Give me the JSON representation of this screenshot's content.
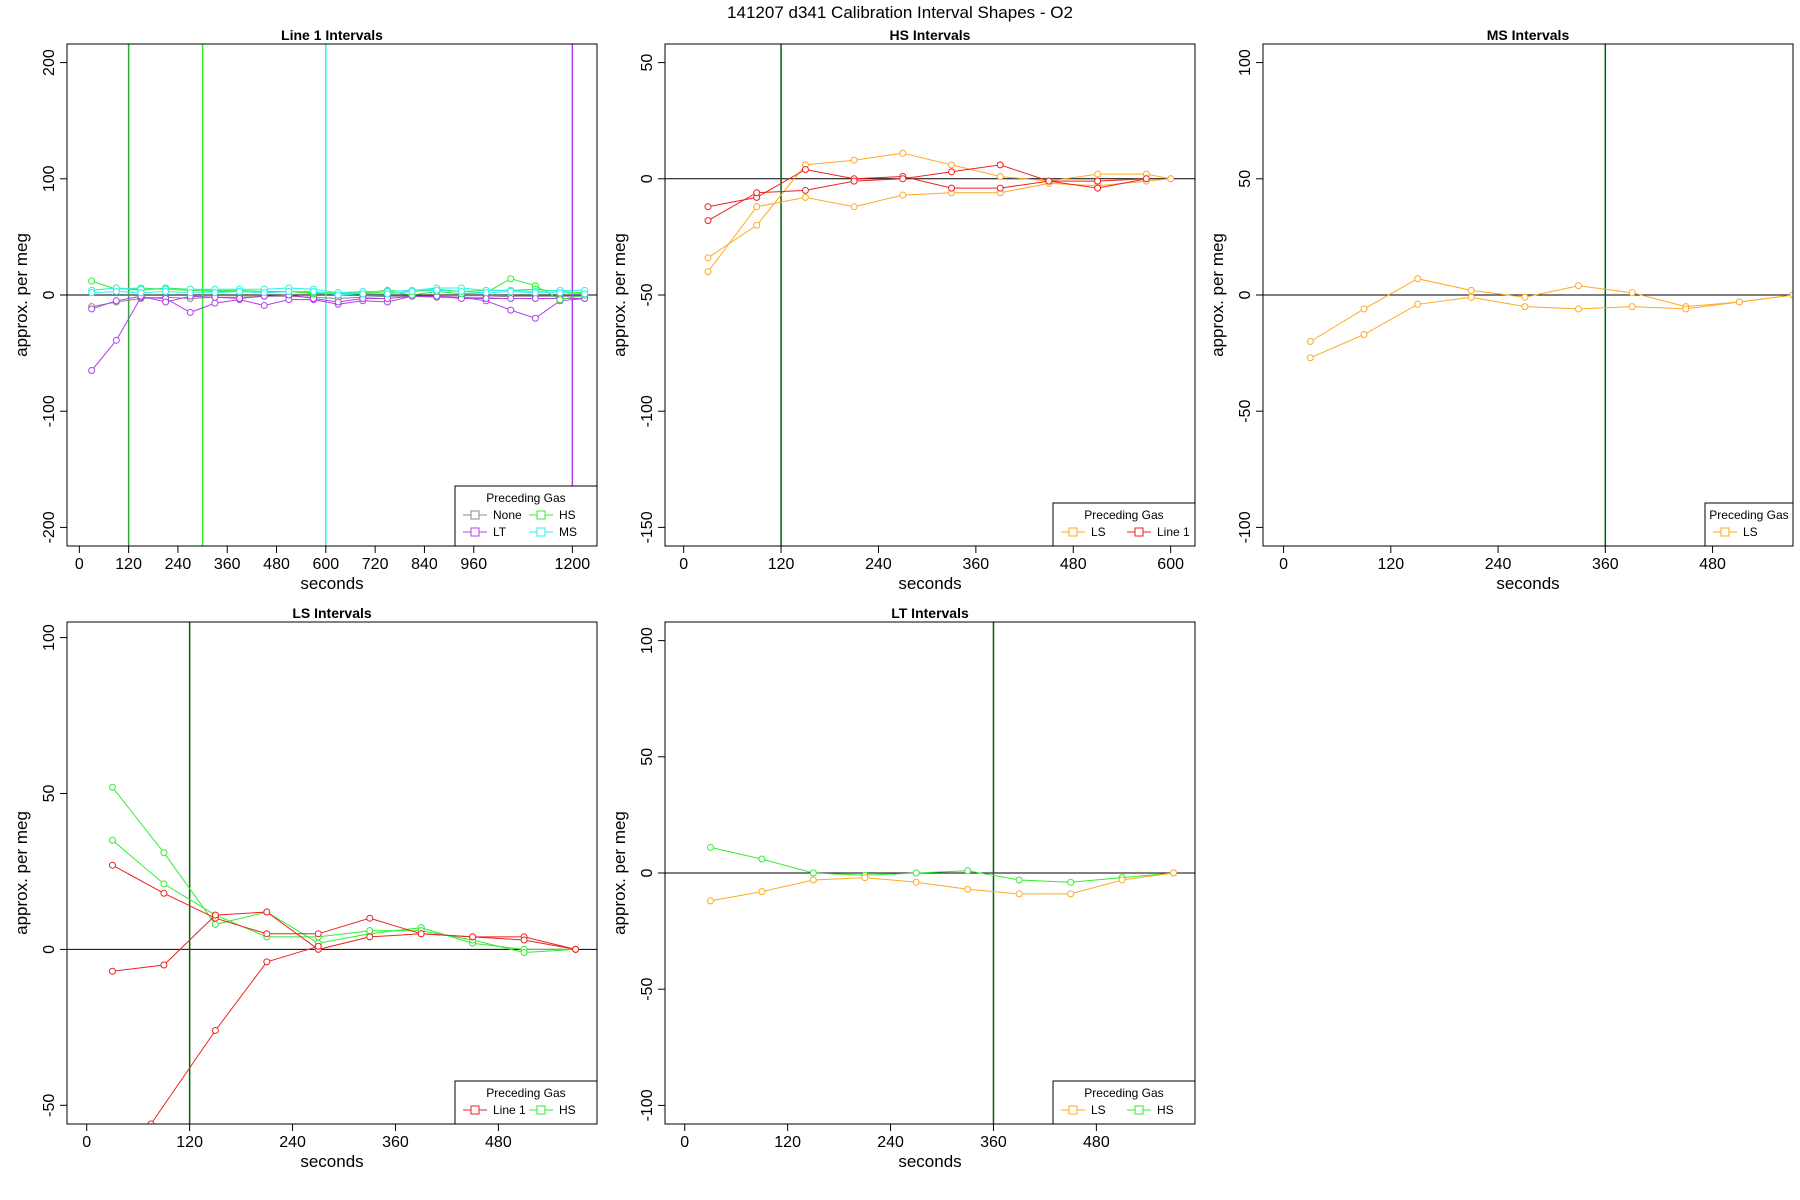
{
  "title": "141207   d341   Calibration Interval Shapes - O2",
  "legend_title": "Preceding Gas",
  "colors": {
    "None": "#888888",
    "LT": "#b040e8",
    "HS": "#30ee30",
    "MS": "#30eeee",
    "LS": "#ffaa22",
    "Line 1": "#ee2222",
    "vline": "#006400",
    "axis": "#000000"
  },
  "chart_data": [
    {
      "type": "line",
      "title": "Line 1 Intervals",
      "xlabel": "seconds",
      "ylabel": "approx. per meg",
      "xlim": [
        -30,
        1260
      ],
      "ylim": [
        -216,
        216
      ],
      "xticks": [
        0,
        120,
        240,
        360,
        480,
        600,
        720,
        840,
        960,
        1200
      ],
      "yticks": [
        -200,
        -100,
        0,
        100,
        200
      ],
      "vlines": [
        {
          "x": 120,
          "color": "#30aa30"
        },
        {
          "x": 300,
          "color": "#30ee30"
        },
        {
          "x": 600,
          "color": "#30eeee"
        },
        {
          "x": 1200,
          "color": "#b040e8"
        }
      ],
      "legend": {
        "position": "bottom-right",
        "columns": 2,
        "entries": [
          "None",
          "HS",
          "LT",
          "MS"
        ]
      },
      "series": [
        {
          "name": "None",
          "x": [
            30,
            90,
            150,
            210,
            270,
            330,
            390,
            450,
            510,
            570,
            630,
            690,
            750,
            810,
            870,
            930,
            990,
            1050,
            1110,
            1170,
            1230
          ],
          "y": [
            -10,
            -6,
            -3,
            -2,
            -3,
            -2,
            -2,
            -1,
            -1,
            -2,
            -3,
            -2,
            -1,
            -1,
            -2,
            -2,
            -2,
            -1,
            -1,
            -1,
            -1
          ]
        },
        {
          "name": "LT",
          "x": [
            30,
            90,
            150,
            210,
            270,
            330,
            390,
            450,
            510,
            570,
            630,
            690,
            750,
            810,
            870,
            930,
            990,
            1050,
            1110,
            1170,
            1230
          ],
          "y": [
            -65,
            -39,
            -2,
            -3,
            -15,
            -7,
            -4,
            -9,
            -4,
            -4,
            -8,
            -5,
            -6,
            -1,
            -1,
            -2,
            -5,
            -13,
            -20,
            -5,
            -3
          ]
        },
        {
          "name": "LT",
          "x": [
            30,
            90,
            150,
            210,
            270,
            330,
            390,
            450,
            510,
            570,
            630,
            690,
            750,
            810,
            870,
            930,
            990,
            1050,
            1110,
            1170,
            1230
          ],
          "y": [
            -12,
            -5,
            -1,
            -6,
            -1,
            -2,
            -3,
            -1,
            0,
            -3,
            -6,
            -3,
            -3,
            -1,
            -1,
            -3,
            -3,
            -3,
            -3,
            -3,
            -3
          ]
        },
        {
          "name": "HS",
          "x": [
            30,
            90,
            150,
            210,
            270,
            330,
            390,
            450,
            510,
            570,
            630,
            690,
            750,
            810,
            870,
            930,
            990,
            1050,
            1110,
            1170,
            1230
          ],
          "y": [
            12,
            5,
            6,
            5,
            4,
            3,
            3,
            2,
            3,
            1,
            1,
            1,
            3,
            0,
            3,
            1,
            2,
            14,
            8,
            -4,
            0
          ]
        },
        {
          "name": "HS",
          "x": [
            30,
            90,
            150,
            210,
            270,
            330,
            390,
            450,
            510,
            570,
            630,
            690,
            750,
            810,
            870,
            930,
            990,
            1050,
            1110,
            1170,
            1230
          ],
          "y": [
            4,
            6,
            4,
            6,
            5,
            4,
            4,
            3,
            3,
            2,
            2,
            2,
            4,
            3,
            5,
            3,
            4,
            4,
            5,
            3,
            2
          ]
        },
        {
          "name": "MS",
          "x": [
            30,
            90,
            150,
            210,
            270,
            330,
            390,
            450,
            510,
            570,
            630,
            690,
            750,
            810,
            870,
            930,
            990,
            1050,
            1110,
            1170,
            1230
          ],
          "y": [
            4,
            6,
            5,
            5,
            5,
            5,
            5,
            5,
            6,
            5,
            2,
            3,
            3,
            4,
            6,
            6,
            4,
            4,
            3,
            4,
            4
          ]
        },
        {
          "name": "MS",
          "x": [
            30,
            90,
            150,
            210,
            270,
            330,
            390,
            450,
            510,
            570,
            630,
            690,
            750,
            810,
            870,
            930,
            990,
            1050,
            1110,
            1170,
            1230
          ],
          "y": [
            2,
            3,
            2,
            3,
            2,
            2,
            3,
            2,
            3,
            3,
            0,
            1,
            1,
            3,
            4,
            3,
            2,
            3,
            2,
            2,
            1
          ]
        }
      ]
    },
    {
      "type": "line",
      "title": "HS Intervals",
      "xlabel": "seconds",
      "ylabel": "approx. per meg",
      "xlim": [
        -23,
        630
      ],
      "ylim": [
        -158,
        58
      ],
      "xticks": [
        0,
        120,
        240,
        360,
        480,
        600
      ],
      "yticks": [
        -150,
        -100,
        -50,
        0,
        50
      ],
      "vlines": [
        {
          "x": 120,
          "color": "#006400"
        }
      ],
      "legend": {
        "position": "bottom-right",
        "columns": 2,
        "entries": [
          "LS",
          "Line 1"
        ]
      },
      "series": [
        {
          "name": "LS",
          "x": [
            30,
            90,
            150,
            210,
            270,
            330,
            390,
            450,
            510,
            570,
            600
          ],
          "y": [
            -34,
            -20,
            6,
            8,
            11,
            6,
            1,
            -1,
            2,
            2,
            0
          ]
        },
        {
          "name": "LS",
          "x": [
            30,
            90,
            150,
            210,
            270,
            330,
            390,
            450,
            510,
            570,
            600
          ],
          "y": [
            -40,
            -12,
            -8,
            -12,
            -7,
            -6,
            -6,
            -2,
            -3,
            -1,
            0
          ]
        },
        {
          "name": "Line 1",
          "x": [
            30,
            90,
            150,
            210,
            270,
            330,
            390,
            450,
            510,
            570
          ],
          "y": [
            -12,
            -8,
            4,
            0,
            1,
            -4,
            -4,
            -1,
            -4,
            0
          ]
        },
        {
          "name": "Line 1",
          "x": [
            30,
            90,
            150,
            210,
            270,
            330,
            390,
            450,
            510,
            570
          ],
          "y": [
            -18,
            -6,
            -5,
            -1,
            0,
            3,
            6,
            -1,
            -1,
            0
          ]
        }
      ]
    },
    {
      "type": "line",
      "title": "MS Intervals",
      "xlabel": "seconds",
      "ylabel": "approx. per meg",
      "xlim": [
        -23,
        570
      ],
      "ylim": [
        -108,
        108
      ],
      "xticks": [
        0,
        120,
        240,
        360,
        480
      ],
      "yticks": [
        -100,
        -50,
        0,
        50,
        100
      ],
      "vlines": [
        {
          "x": 360,
          "color": "#006400"
        }
      ],
      "legend": {
        "position": "bottom-right",
        "columns": 1,
        "entries": [
          "LS"
        ]
      },
      "series": [
        {
          "name": "LS",
          "x": [
            30,
            90,
            150,
            210,
            270,
            330,
            390,
            450,
            510,
            570
          ],
          "y": [
            -20,
            -6,
            7,
            2,
            -1,
            4,
            1,
            -5,
            -3,
            0
          ]
        },
        {
          "name": "LS",
          "x": [
            30,
            90,
            150,
            210,
            270,
            330,
            390,
            450,
            510,
            570
          ],
          "y": [
            -27,
            -17,
            -4,
            -1,
            -5,
            -6,
            -5,
            -6,
            -3,
            0
          ]
        }
      ]
    },
    {
      "type": "line",
      "title": "LS Intervals",
      "xlabel": "seconds",
      "ylabel": "approx. per meg",
      "xlim": [
        -23,
        595
      ],
      "ylim": [
        -56,
        105
      ],
      "xticks": [
        0,
        120,
        240,
        360,
        480
      ],
      "yticks": [
        -50,
        0,
        50,
        100
      ],
      "vlines": [
        {
          "x": 120,
          "color": "#006400"
        }
      ],
      "legend": {
        "position": "bottom-right",
        "columns": 2,
        "entries": [
          "Line 1",
          "HS"
        ]
      },
      "series": [
        {
          "name": "HS",
          "x": [
            30,
            90,
            150,
            210,
            270,
            330,
            390,
            450,
            510,
            570
          ],
          "y": [
            52,
            31,
            8,
            12,
            2,
            5,
            7,
            2,
            0,
            0
          ]
        },
        {
          "name": "HS",
          "x": [
            30,
            90,
            150,
            210,
            270,
            330,
            390,
            450,
            510,
            570
          ],
          "y": [
            35,
            21,
            11,
            4,
            4,
            6,
            6,
            3,
            -1,
            0
          ]
        },
        {
          "name": "Line 1",
          "x": [
            30,
            90,
            150,
            210,
            270,
            330,
            390,
            450,
            510,
            570
          ],
          "y": [
            27,
            18,
            10,
            5,
            5,
            10,
            5,
            4,
            4,
            0
          ]
        },
        {
          "name": "Line 1",
          "x": [
            30,
            90,
            150,
            210,
            270,
            330,
            390,
            450,
            510,
            570
          ],
          "y": [
            -7,
            -5,
            11,
            12,
            0,
            4,
            5,
            4,
            3,
            0
          ]
        },
        {
          "name": "Line 1",
          "x": [
            75,
            150,
            210,
            270
          ],
          "y": [
            -56,
            -26,
            -4,
            1
          ]
        }
      ]
    },
    {
      "type": "line",
      "title": "LT Intervals",
      "xlabel": "seconds",
      "ylabel": "approx. per meg",
      "xlim": [
        -23,
        595
      ],
      "ylim": [
        -108,
        108
      ],
      "xticks": [
        0,
        120,
        240,
        360,
        480
      ],
      "yticks": [
        -100,
        -50,
        0,
        50,
        100
      ],
      "vlines": [
        {
          "x": 360,
          "color": "#006400"
        }
      ],
      "legend": {
        "position": "bottom-right",
        "columns": 2,
        "entries": [
          "LS",
          "HS"
        ]
      },
      "series": [
        {
          "name": "HS",
          "x": [
            30,
            90,
            150,
            210,
            270,
            330,
            390,
            450,
            510,
            570
          ],
          "y": [
            11,
            6,
            0,
            -1,
            0,
            1,
            -3,
            -4,
            -2,
            0
          ]
        },
        {
          "name": "LS",
          "x": [
            30,
            90,
            150,
            210,
            270,
            330,
            390,
            450,
            510,
            570
          ],
          "y": [
            -12,
            -8,
            -3,
            -2,
            -4,
            -7,
            -9,
            -9,
            -3,
            0
          ]
        }
      ]
    }
  ]
}
